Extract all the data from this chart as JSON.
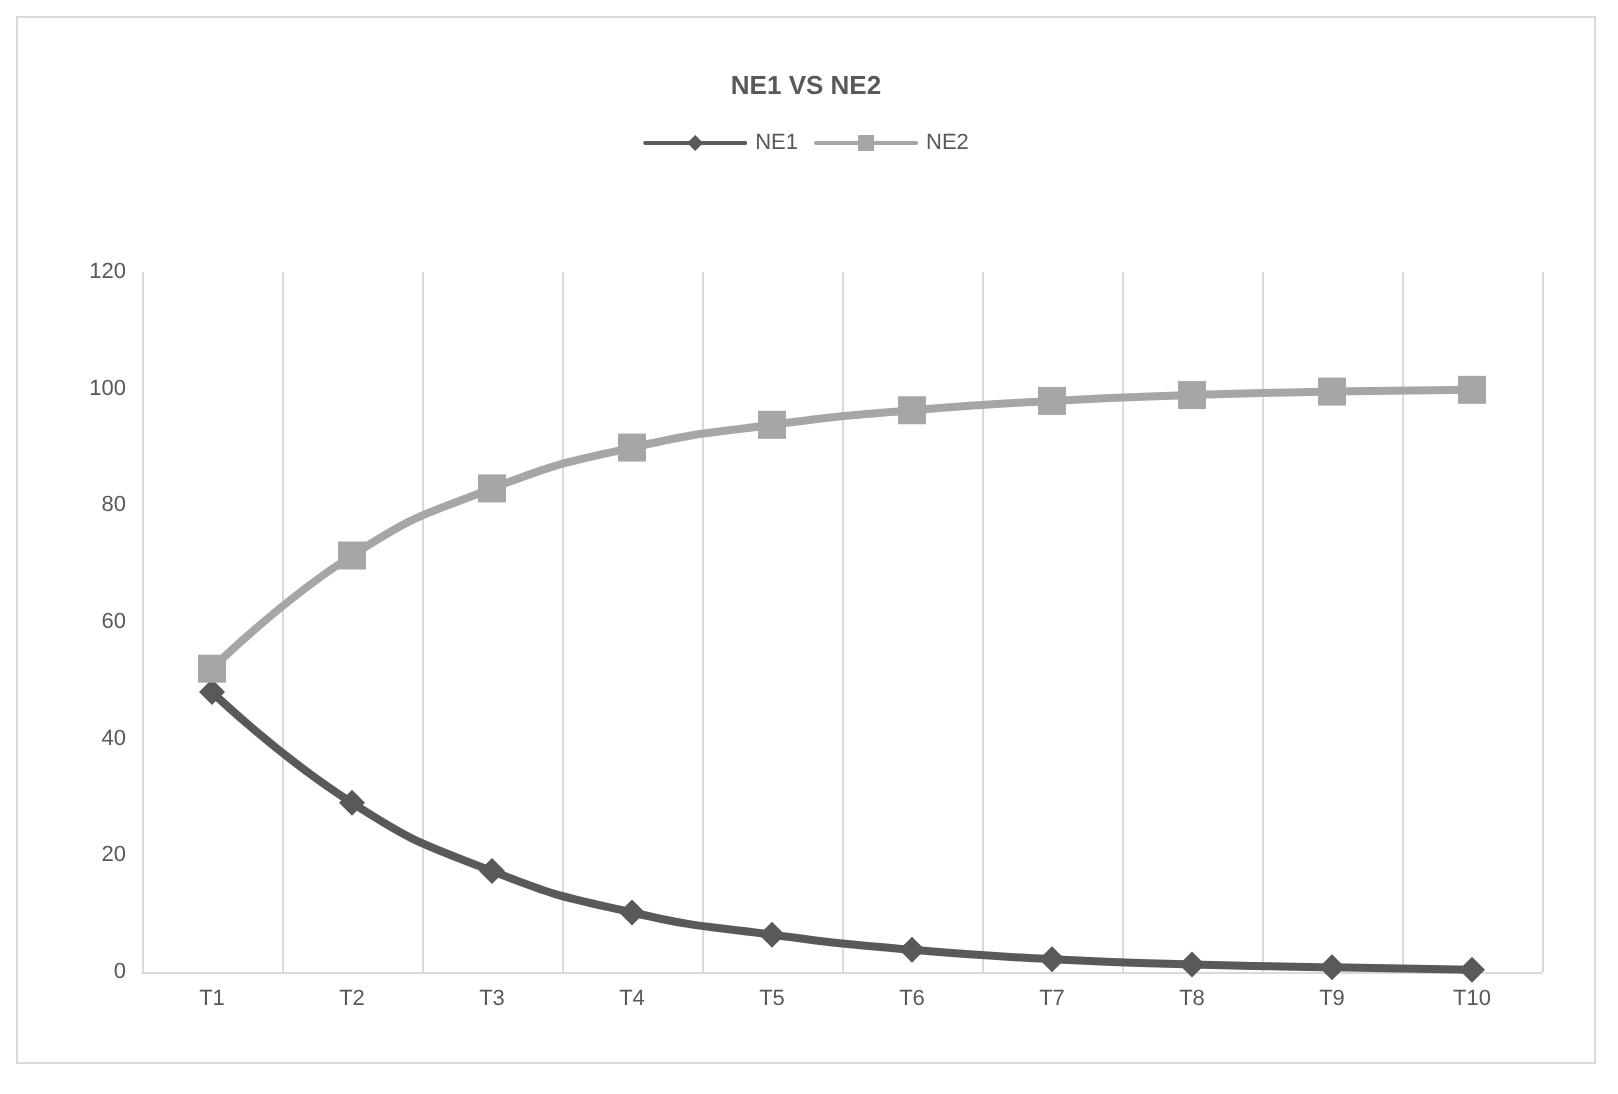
{
  "chart_data": {
    "type": "line",
    "title": "NE1 VS NE2",
    "categories": [
      "T1",
      "T2",
      "T3",
      "T4",
      "T5",
      "T6",
      "T7",
      "T8",
      "T9",
      "T10"
    ],
    "series": [
      {
        "name": "NE1",
        "color": "#595959",
        "marker": "diamond",
        "values": [
          48,
          29,
          17.3,
          10.2,
          6.4,
          3.8,
          2.2,
          1.3,
          0.8,
          0.4
        ]
      },
      {
        "name": "NE2",
        "color": "#a6a6a6",
        "marker": "square",
        "values": [
          52,
          71.4,
          82.9,
          89.9,
          93.8,
          96.3,
          97.9,
          98.9,
          99.5,
          99.8
        ]
      }
    ],
    "ylim": [
      0,
      120
    ],
    "yticks": [
      0,
      20,
      40,
      60,
      80,
      100,
      120
    ],
    "grid": "x",
    "legend": "top",
    "line_style": "solid"
  }
}
